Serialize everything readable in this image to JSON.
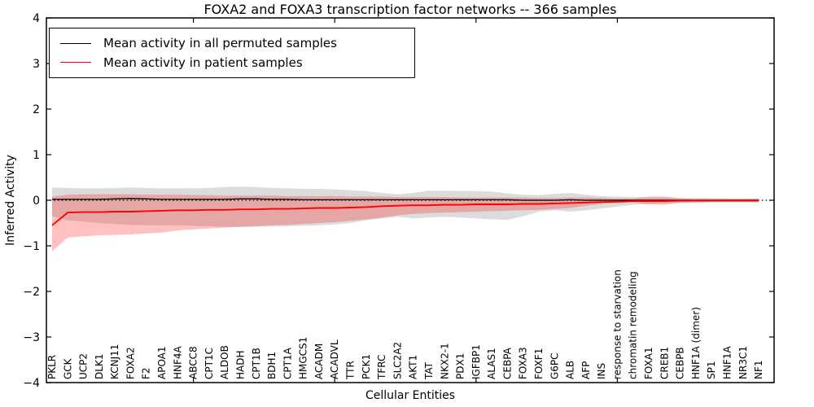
{
  "figure": {
    "title": "FOXA2 and FOXA3 transcription factor networks -- 366 samples",
    "xlabel": "Cellular Entities",
    "ylabel": "Inferred Activity"
  },
  "legend": {
    "items": [
      {
        "label": "Mean activity in all permuted samples",
        "color": "#000000"
      },
      {
        "label": "Mean activity in patient samples",
        "color": "#ff0000"
      }
    ]
  },
  "chart_data": {
    "type": "line",
    "title": "FOXA2 and FOXA3 transcription factor networks -- 366 samples",
    "xlabel": "Cellular Entities",
    "ylabel": "Inferred Activity",
    "ylim": [
      -4,
      4
    ],
    "yticks": [
      4,
      3,
      2,
      1,
      0,
      -1,
      -2,
      -3,
      -4
    ],
    "x_major_tick_indices": [
      9,
      18,
      27,
      36
    ],
    "grid": false,
    "legend_position": "upper left",
    "zero_line": {
      "y": 0,
      "style": "dotted",
      "color": "#000000"
    },
    "categories": [
      "PKLR",
      "GCK",
      "UCP2",
      "DLK1",
      "KCNJ11",
      "FOXA2",
      "F2",
      "APOA1",
      "HNF4A",
      "ABCC8",
      "CPT1C",
      "ALDOB",
      "HADH",
      "CPT1B",
      "BDH1",
      "CPT1A",
      "HMGCS1",
      "ACADM",
      "ACADVL",
      "TTR",
      "PCK1",
      "TFRC",
      "SLC2A2",
      "AKT1",
      "TAT",
      "NKX2-1",
      "PDX1",
      "IGFBP1",
      "ALAS1",
      "CEBPA",
      "FOXA3",
      "FOXF1",
      "G6PC",
      "ALB",
      "AFP",
      "INS",
      "response to starvation",
      "chromatin remodeling",
      "FOXA1",
      "CREB1",
      "CEBPB",
      "HNF1A (dimer)",
      "SP1",
      "HNF1A",
      "NR3C1",
      "NF1"
    ],
    "series": [
      {
        "name": "Mean activity in all permuted samples",
        "color": "#000000",
        "values": [
          0.02,
          0.02,
          0.02,
          0.02,
          0.03,
          0.04,
          0.03,
          0.02,
          0.02,
          0.02,
          0.02,
          0.02,
          0.03,
          0.03,
          0.02,
          0.02,
          0.01,
          0.01,
          0.01,
          0.01,
          0.01,
          0.01,
          0.01,
          0.01,
          0.01,
          0.01,
          0.01,
          0.01,
          0.01,
          0.01,
          0.0,
          0.0,
          0.0,
          0.01,
          0.0,
          0.0,
          0.0,
          0.0,
          0.0,
          0.0,
          0.0,
          0.0,
          0.0,
          0.0,
          0.0,
          0.0
        ]
      },
      {
        "name": "Mean activity in patient samples",
        "color": "#ff0000",
        "values": [
          -0.55,
          -0.27,
          -0.26,
          -0.26,
          -0.25,
          -0.25,
          -0.24,
          -0.23,
          -0.22,
          -0.22,
          -0.21,
          -0.21,
          -0.2,
          -0.2,
          -0.19,
          -0.19,
          -0.18,
          -0.17,
          -0.17,
          -0.16,
          -0.15,
          -0.13,
          -0.12,
          -0.11,
          -0.11,
          -0.1,
          -0.1,
          -0.09,
          -0.09,
          -0.09,
          -0.08,
          -0.08,
          -0.07,
          -0.06,
          -0.05,
          -0.04,
          -0.03,
          -0.02,
          -0.02,
          -0.02,
          -0.01,
          -0.01,
          -0.01,
          -0.01,
          -0.01,
          -0.01
        ]
      }
    ],
    "bands": [
      {
        "name": "permuted samples range",
        "color": "#808080",
        "alpha": 0.28,
        "upper": [
          0.28,
          0.27,
          0.26,
          0.26,
          0.27,
          0.28,
          0.27,
          0.26,
          0.26,
          0.26,
          0.27,
          0.29,
          0.3,
          0.29,
          0.27,
          0.26,
          0.25,
          0.25,
          0.24,
          0.22,
          0.2,
          0.16,
          0.13,
          0.16,
          0.21,
          0.21,
          0.2,
          0.2,
          0.19,
          0.15,
          0.12,
          0.11,
          0.14,
          0.16,
          0.12,
          0.09,
          0.08,
          0.07,
          0.06,
          0.06,
          0.05,
          0.05,
          0.05,
          0.04,
          0.04,
          0.04
        ],
        "lower": [
          -0.35,
          -0.44,
          -0.47,
          -0.5,
          -0.52,
          -0.54,
          -0.55,
          -0.55,
          -0.55,
          -0.56,
          -0.57,
          -0.58,
          -0.59,
          -0.58,
          -0.58,
          -0.57,
          -0.56,
          -0.55,
          -0.53,
          -0.5,
          -0.44,
          -0.4,
          -0.36,
          -0.4,
          -0.38,
          -0.36,
          -0.38,
          -0.4,
          -0.42,
          -0.43,
          -0.35,
          -0.25,
          -0.22,
          -0.25,
          -0.22,
          -0.18,
          -0.14,
          -0.1,
          -0.08,
          -0.07,
          -0.06,
          -0.06,
          -0.05,
          -0.05,
          -0.05,
          -0.05
        ]
      },
      {
        "name": "patient samples range",
        "color": "#ff1e1e",
        "alpha": 0.28,
        "upper": [
          0.08,
          0.12,
          0.13,
          0.13,
          0.13,
          0.13,
          0.12,
          0.12,
          0.12,
          0.11,
          0.11,
          0.1,
          0.1,
          0.1,
          0.1,
          0.09,
          0.09,
          0.09,
          0.09,
          0.08,
          0.08,
          0.08,
          0.07,
          0.07,
          0.07,
          0.07,
          0.06,
          0.06,
          0.06,
          0.06,
          0.06,
          0.05,
          0.05,
          0.06,
          0.06,
          0.05,
          0.04,
          0.04,
          0.08,
          0.08,
          0.04,
          0.03,
          0.03,
          0.03,
          0.03,
          0.03
        ],
        "lower": [
          -1.12,
          -0.82,
          -0.79,
          -0.77,
          -0.76,
          -0.75,
          -0.73,
          -0.71,
          -0.66,
          -0.64,
          -0.62,
          -0.6,
          -0.58,
          -0.57,
          -0.55,
          -0.54,
          -0.52,
          -0.5,
          -0.48,
          -0.45,
          -0.42,
          -0.38,
          -0.33,
          -0.3,
          -0.28,
          -0.27,
          -0.26,
          -0.25,
          -0.24,
          -0.23,
          -0.22,
          -0.21,
          -0.19,
          -0.17,
          -0.12,
          -0.08,
          -0.06,
          -0.05,
          -0.09,
          -0.1,
          -0.05,
          -0.04,
          -0.03,
          -0.03,
          -0.03,
          -0.03
        ]
      }
    ]
  }
}
